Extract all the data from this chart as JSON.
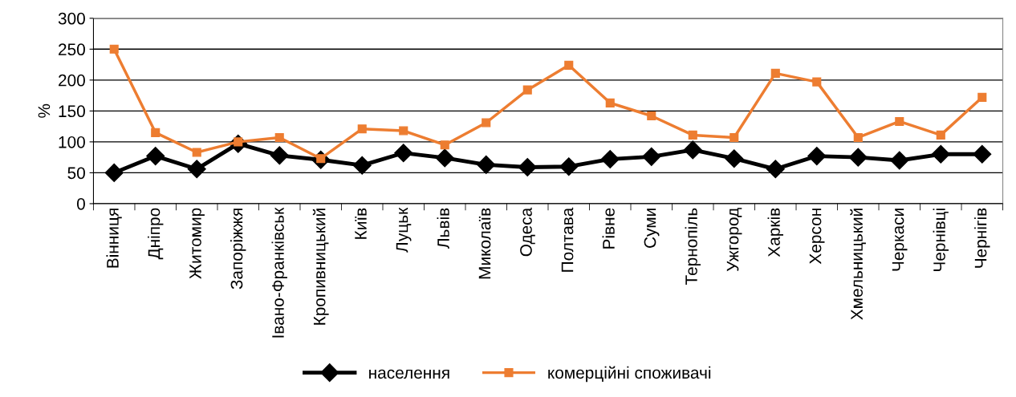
{
  "chart_data": {
    "type": "line",
    "ylabel": "%",
    "categories": [
      "Вінниця",
      "Дніпро",
      "Житомир",
      "Запоріжжя",
      "Івано-Франківськ",
      "Кропивницький",
      "Київ",
      "Луцьк",
      "Львів",
      "Миколаїв",
      "Одеса",
      "Полтава",
      "Рівне",
      "Суми",
      "Тернопіль",
      "Ужгород",
      "Харків",
      "Херсон",
      "Хмельницький",
      "Черкаси",
      "Чернівці",
      "Чернігів"
    ],
    "series": [
      {
        "name": "населення",
        "color": "#000000",
        "marker": "diamond",
        "values": [
          50,
          77,
          56,
          97,
          78,
          71,
          62,
          82,
          74,
          63,
          59,
          60,
          72,
          76,
          87,
          73,
          56,
          77,
          75,
          70,
          80,
          80
        ]
      },
      {
        "name": "комерційні споживачі",
        "color": "#ed7d31",
        "marker": "square",
        "values": [
          250,
          115,
          83,
          100,
          107,
          73,
          121,
          118,
          95,
          131,
          184,
          224,
          163,
          142,
          111,
          107,
          211,
          197,
          107,
          133,
          111,
          172
        ]
      }
    ],
    "ylim": [
      0,
      300
    ],
    "yticks": [
      0,
      50,
      100,
      150,
      200,
      250,
      300
    ],
    "grid": "y",
    "legend": "bottom",
    "line_style": "solid"
  }
}
